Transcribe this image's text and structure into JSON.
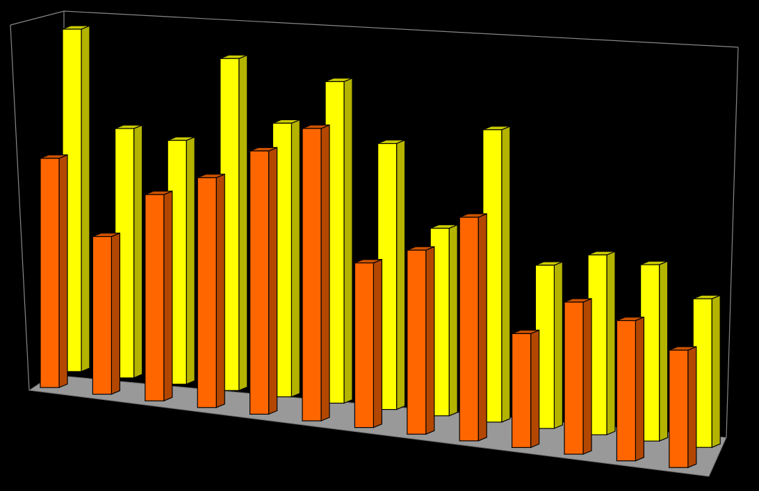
{
  "chart_data": {
    "type": "bar3d",
    "categories": [
      null,
      null,
      null,
      null,
      null,
      null,
      null,
      null,
      null,
      null,
      null,
      null,
      null
    ],
    "series": [
      {
        "color": "#ffff00",
        "values": [
          493,
          359,
          351,
          478,
          394,
          463,
          383,
          270,
          421,
          235,
          259,
          254,
          214
        ]
      },
      {
        "color": "#ff6600",
        "values": [
          330,
          227,
          297,
          331,
          379,
          421,
          237,
          265,
          322,
          164,
          219,
          202,
          169
        ]
      }
    ],
    "ylim": [
      0,
      500
    ]
  }
}
